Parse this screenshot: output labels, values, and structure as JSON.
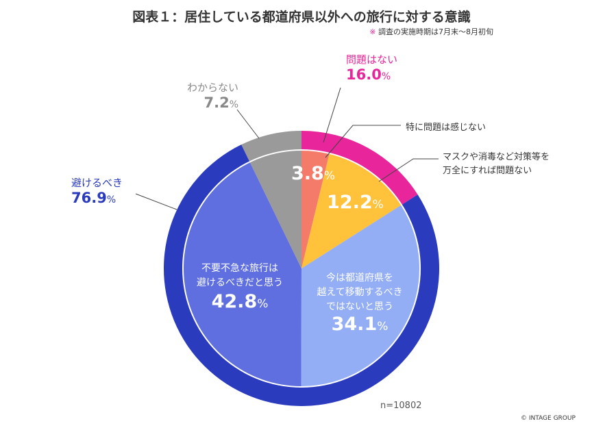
{
  "chart_data": {
    "type": "pie",
    "title": "図表１：居住している都道府県以外への旅行に対する意識",
    "subtitle_mark": "※",
    "subtitle": "調査の実施時期は7月末～8月初旬",
    "sample_size": "n=10802",
    "copyright": "© INTAGE GROUP",
    "unit": "%",
    "outer_ring": [
      {
        "label": "問題はない",
        "value": 16.0,
        "color": "#e8259a"
      },
      {
        "label": "避けるべき",
        "value": 76.9,
        "color": "#2a3bbe"
      },
      {
        "label": "わからない",
        "value": 7.2,
        "color": "#9a9a9a"
      }
    ],
    "inner_pie": [
      {
        "label": "特に問題は感じない",
        "value": 3.8,
        "color": "#f47a6a"
      },
      {
        "label": "マスクや消毒など対策等を万全にすれば問題ない",
        "label_lines": [
          "マスクや消毒など対策等を",
          "万全にすれば問題ない"
        ],
        "value": 12.2,
        "color": "#ffc23a"
      },
      {
        "label": "今は都道府県を越えて移動するべきではないと思う",
        "label_lines": [
          "今は都道府県を",
          "越えて移動するべき",
          "ではないと思う"
        ],
        "value": 34.1,
        "color": "#93aef5"
      },
      {
        "label": "不要不急な旅行は避けるべきだと思う",
        "label_lines": [
          "不要不急な旅行は",
          "避けるべきだと思う"
        ],
        "value": 42.8,
        "color": "#5f6fe0"
      },
      {
        "label": "わからない",
        "value": 7.2,
        "color": "#9a9a9a"
      }
    ]
  }
}
